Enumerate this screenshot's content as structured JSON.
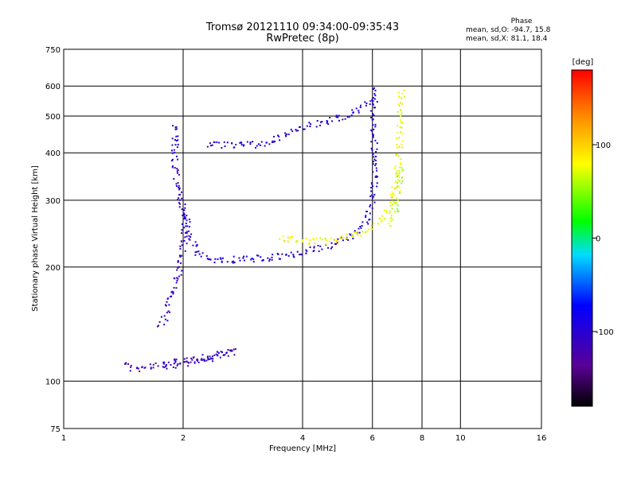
{
  "title_line1": "Tromsø 20121110 09:34:00-09:35:43",
  "title_line2": "RwPretec (8p)",
  "phase_info": {
    "heading": "Phase",
    "line_o": "mean, sd,O: -94.7, 15.8",
    "line_x": "mean, sd,X:  81.1, 18.4"
  },
  "colorbar": {
    "label": "[deg]",
    "ticks": [
      "100",
      "0",
      "-100"
    ],
    "tick_values": [
      100,
      0,
      -100
    ],
    "range": [
      -180,
      180
    ]
  },
  "chart_data": {
    "type": "scatter",
    "xlabel": "Frequency [MHz]",
    "ylabel": "Stationary phase Virtual Height [km]",
    "xscale": "log",
    "yscale": "log",
    "xlim": [
      1,
      16
    ],
    "ylim": [
      75,
      750
    ],
    "x_ticks": [
      "1",
      "2",
      "4",
      "6",
      "8",
      "10",
      "16"
    ],
    "x_tick_values": [
      1,
      2,
      4,
      6,
      8,
      10,
      16
    ],
    "y_ticks": [
      "750",
      "600",
      "500",
      "400",
      "300",
      "200",
      "100",
      "75"
    ],
    "y_tick_values": [
      750,
      600,
      500,
      400,
      300,
      200,
      100,
      75
    ],
    "grid": true,
    "series": [
      {
        "values": [
          [
            1.8,
            110
          ],
          [
            1.9,
            110
          ],
          [
            2.0,
            112
          ],
          [
            2.1,
            112
          ],
          [
            2.3,
            115
          ],
          [
            2.5,
            118
          ],
          [
            2.7,
            120
          ],
          [
            1.5,
            108
          ],
          [
            1.4,
            112
          ]
        ],
        "color_value": -110
      },
      {
        "values": [
          [
            1.75,
            140
          ],
          [
            1.8,
            150
          ],
          [
            1.85,
            165
          ],
          [
            1.9,
            180
          ],
          [
            1.95,
            200
          ],
          [
            2.0,
            230
          ],
          [
            2.0,
            270
          ],
          [
            1.95,
            310
          ],
          [
            1.9,
            360
          ],
          [
            1.9,
            420
          ],
          [
            1.9,
            480
          ]
        ],
        "color_value": -105
      },
      {
        "values": [
          [
            2.0,
            290
          ],
          [
            2.05,
            250
          ],
          [
            2.15,
            220
          ],
          [
            2.4,
            210
          ],
          [
            2.8,
            210
          ],
          [
            3.2,
            212
          ],
          [
            3.6,
            215
          ],
          [
            4.0,
            220
          ],
          [
            4.6,
            228
          ],
          [
            5.2,
            240
          ],
          [
            5.7,
            260
          ],
          [
            6.0,
            300
          ],
          [
            6.05,
            360
          ],
          [
            6.05,
            420
          ],
          [
            6.0,
            480
          ],
          [
            6.0,
            540
          ],
          [
            6.1,
            600
          ]
        ],
        "color_value": -95
      },
      {
        "values": [
          [
            2.3,
            425
          ],
          [
            2.6,
            420
          ],
          [
            3.0,
            422
          ],
          [
            3.4,
            435
          ],
          [
            3.8,
            460
          ],
          [
            4.2,
            475
          ],
          [
            4.7,
            490
          ],
          [
            5.2,
            505
          ],
          [
            5.7,
            530
          ],
          [
            6.0,
            560
          ]
        ],
        "color_value": -100
      },
      {
        "values": [
          [
            3.5,
            240
          ],
          [
            4.0,
            235
          ],
          [
            4.6,
            235
          ],
          [
            5.2,
            240
          ],
          [
            5.8,
            250
          ],
          [
            6.3,
            265
          ],
          [
            6.7,
            300
          ],
          [
            6.9,
            360
          ],
          [
            7.0,
            420
          ],
          [
            7.0,
            500
          ],
          [
            7.1,
            600
          ]
        ],
        "color_value": 80
      },
      {
        "values": [
          [
            6.6,
            260
          ],
          [
            6.8,
            280
          ],
          [
            6.9,
            300
          ],
          [
            7.0,
            330
          ],
          [
            7.0,
            370
          ]
        ],
        "color_value": 60
      }
    ]
  }
}
